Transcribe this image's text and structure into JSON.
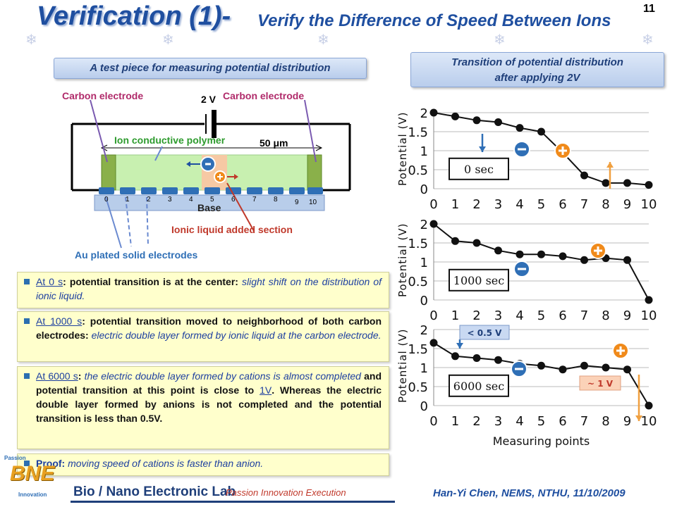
{
  "header": {
    "title_main": "Verification (1)-",
    "title_sub": "Verify the Difference of Speed Between Ions",
    "slide_number": "11"
  },
  "left_top": {
    "box_label": "A test piece for measuring potential distribution",
    "carbon_left": "Carbon electrode",
    "carbon_right": "Carbon electrode",
    "voltage": "2 V",
    "polymer": "Ion conductive polymer",
    "width": "50 μm",
    "base": "Base",
    "minus": "-",
    "plus": "+",
    "points": [
      "0",
      "1",
      "2",
      "3",
      "4",
      "5",
      "6",
      "7",
      "8",
      "9",
      "10"
    ],
    "ionic_liquid": "Ionic liquid added section",
    "au_plated": "Au plated solid electrodes"
  },
  "right_top": {
    "box_label_line1": "Transition of potential distribution",
    "box_label_line2": "after applying 2V"
  },
  "bullets": {
    "b1": {
      "t1": "At 0 s",
      "t2": ": potential transition is at the center: ",
      "t3": "slight shift on the distribution of ionic liquid."
    },
    "b2": {
      "t1": "At 1000 s",
      "t2": ": potential transition moved to neighborhood of both carbon electrodes: ",
      "t3": "electric double layer formed by ionic liquid at the carbon electrode."
    },
    "b3": {
      "t1": "At 6000 s",
      "t2": ": ",
      "t3": "the electric double layer formed by cations is almost completed",
      "t4": " and potential transition at this point is close to ",
      "t5": "1V",
      "t6": ". Whereas the electric double layer formed by anions is not completed and the potential transition is less than ",
      "t7": "0.5V",
      "t8": "."
    },
    "b4": {
      "t1": "Proof: ",
      "t2": "moving speed of cations is faster than anion."
    }
  },
  "graphs": {
    "ylabel": "Potential (V)",
    "xlabel": "Measuring points",
    "y_ticks": [
      "2",
      "1.5",
      "1",
      "0.5",
      "0"
    ],
    "x_ticks": [
      "0",
      "1",
      "2",
      "3",
      "4",
      "5",
      "6",
      "7",
      "8",
      "9",
      "10"
    ],
    "g1": {
      "legend": "0 sec"
    },
    "g2": {
      "legend": "1000 sec"
    },
    "g3": {
      "legend": "6000 sec",
      "note_low": "< 0.5 V",
      "note_high": "~ 1 V"
    }
  },
  "chart_data": [
    {
      "type": "line",
      "x": [
        0,
        1,
        2,
        3,
        4,
        5,
        6,
        7,
        8,
        9,
        10
      ],
      "values": [
        2.0,
        1.9,
        1.8,
        1.75,
        1.6,
        1.5,
        0.95,
        0.35,
        0.15,
        0.15,
        0.1
      ],
      "ylim": [
        0,
        2
      ],
      "xlabel": "Measuring points",
      "ylabel": "Potential (V)"
    },
    {
      "type": "line",
      "x": [
        0,
        1,
        2,
        3,
        4,
        5,
        6,
        7,
        8,
        9,
        10
      ],
      "values": [
        2.0,
        1.55,
        1.5,
        1.3,
        1.2,
        1.2,
        1.15,
        1.05,
        1.1,
        1.05,
        0.0
      ],
      "ylim": [
        0,
        2
      ],
      "xlabel": "Measuring points",
      "ylabel": "Potential (V)"
    },
    {
      "type": "line",
      "x": [
        0,
        1,
        2,
        3,
        4,
        5,
        6,
        7,
        8,
        9,
        10
      ],
      "values": [
        1.65,
        1.3,
        1.25,
        1.2,
        1.1,
        1.05,
        0.95,
        1.05,
        1.0,
        0.95,
        0.0
      ],
      "ylim": [
        0,
        2
      ],
      "xlabel": "Measuring points",
      "ylabel": "Potential (V)"
    }
  ],
  "footer": {
    "logo": "BNE",
    "logo_top": "Passion",
    "logo_bottom": "Innovation",
    "lab_name": "Bio / Nano Electronic Lab",
    "tagline": "Passion Innovation Execution",
    "author": "Han-Yi Chen, NEMS, NTHU, 11/10/2009"
  },
  "colors": {
    "title": "#1f4fa0",
    "ionic_liquid": "#c0392b",
    "carbon": "#b02a6a",
    "polymer": "#2e9b2e",
    "au": "#2f6fb6"
  }
}
